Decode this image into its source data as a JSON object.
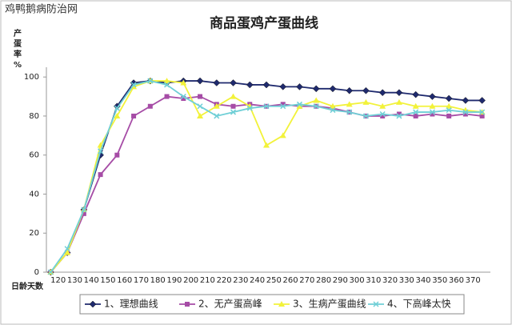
{
  "watermark": "鸡鸭鹅病防治网",
  "chart_data": {
    "type": "line",
    "title": "商品蛋鸡产蛋曲线",
    "y_label": "产蛋率%",
    "x_label": "日龄天数",
    "categories": [
      null,
      "120",
      "130",
      "140",
      "150",
      "160",
      "170",
      "180",
      "190",
      "200",
      "210",
      "220",
      "230",
      "240",
      "250",
      "260",
      "270",
      "280",
      "290",
      "300",
      "310",
      "320",
      "330",
      "340",
      "350",
      "360",
      "370"
    ],
    "series": [
      {
        "name": "1、理想曲线",
        "color": "#1f2a6e",
        "marker": "diamond",
        "values": [
          0,
          10,
          32,
          60,
          85,
          97,
          98,
          97,
          98,
          98,
          97,
          97,
          96,
          96,
          95,
          95,
          94,
          94,
          93,
          93,
          92,
          92,
          91,
          90,
          89,
          88,
          88
        ]
      },
      {
        "name": "2、无产蛋高峰",
        "color": "#a64ca6",
        "marker": "square",
        "values": [
          0,
          10,
          30,
          50,
          60,
          80,
          85,
          90,
          89,
          90,
          86,
          85,
          86,
          85,
          86,
          85,
          85,
          84,
          82,
          80,
          80,
          81,
          80,
          81,
          80,
          81,
          80
        ]
      },
      {
        "name": "3、生病产蛋曲线",
        "color": "#f2f23a",
        "marker": "triangle",
        "values": [
          0,
          10,
          32,
          65,
          80,
          95,
          98,
          98,
          97,
          80,
          85,
          90,
          85,
          65,
          70,
          85,
          88,
          85,
          86,
          87,
          85,
          87,
          85,
          85,
          85,
          83,
          82
        ]
      },
      {
        "name": "4、下高峰太快",
        "color": "#6fcfd6",
        "marker": "x",
        "values": [
          0,
          12,
          32,
          62,
          84,
          96,
          98,
          96,
          90,
          85,
          80,
          82,
          84,
          85,
          85,
          86,
          85,
          83,
          82,
          80,
          81,
          80,
          82,
          82,
          83,
          82,
          82
        ]
      }
    ],
    "ylim": [
      0,
      105
    ],
    "yticks": [
      0,
      20,
      40,
      60,
      80,
      100
    ],
    "legend": "bottom"
  }
}
